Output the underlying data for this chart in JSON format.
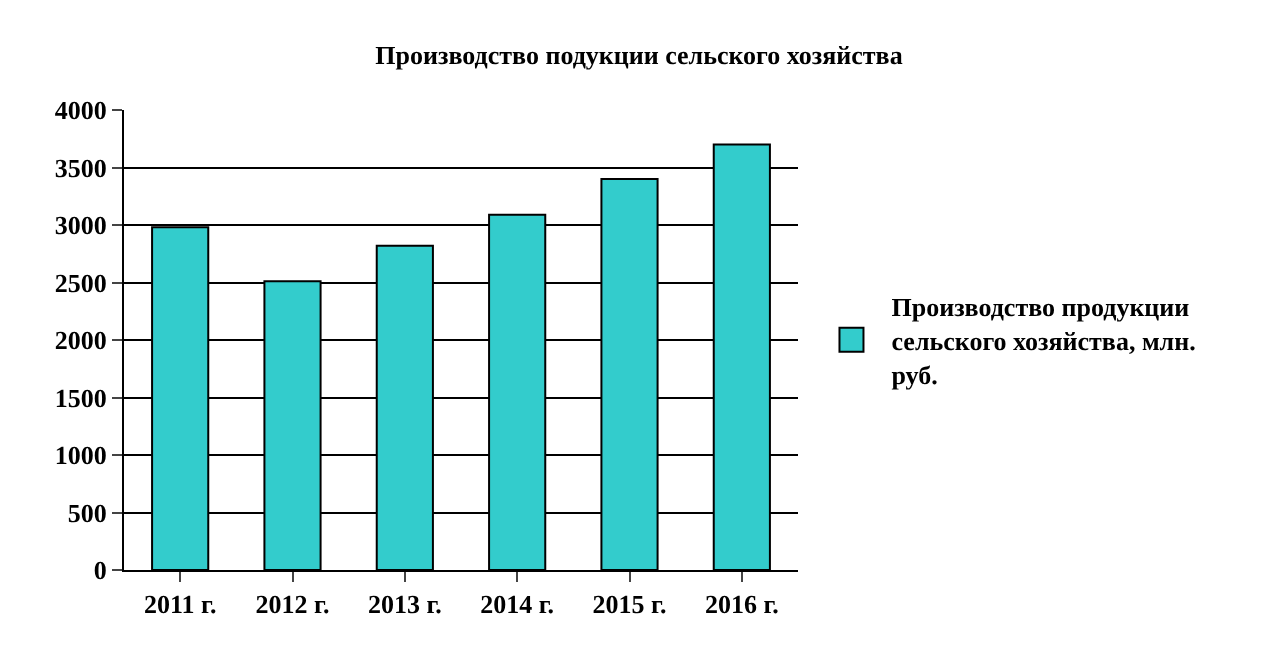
{
  "chart_data": {
    "type": "bar",
    "title": "Производство подукции сельского хозяйства",
    "categories": [
      "2011 г.",
      "2012 г.",
      "2013 г.",
      "2014 г.",
      "2015 г.",
      "2016 г."
    ],
    "series": [
      {
        "name": "Производство продукции сельского хозяйства, млн. руб.",
        "color": "#33cccc",
        "values": [
          2980,
          2510,
          2820,
          3090,
          3400,
          3700
        ]
      }
    ],
    "ylim": [
      0,
      4000
    ],
    "yticks": [
      0,
      500,
      1000,
      1500,
      2000,
      2500,
      3000,
      3500,
      4000
    ],
    "grid": "y",
    "legend": "right"
  }
}
